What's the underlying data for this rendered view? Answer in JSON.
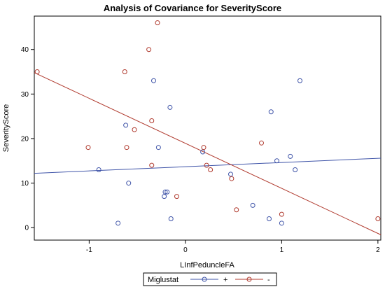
{
  "chart_data": {
    "type": "scatter",
    "title": "Analysis of Covariance for SeverityScore",
    "xlabel": "LInfPeduncleFA",
    "ylabel": "SeverityScore",
    "xlim": [
      -1.57,
      2.03
    ],
    "ylim": [
      -2.8,
      47.5
    ],
    "x_ticks": [
      -1,
      0,
      1,
      2
    ],
    "y_ticks": [
      0,
      10,
      20,
      30,
      40
    ],
    "x_tick_labels": [
      "-1",
      "0",
      "1",
      "2"
    ],
    "y_tick_labels": [
      "0",
      "10",
      "20",
      "30",
      "40"
    ],
    "grid": false,
    "legend": {
      "title": "Miglustat",
      "placement": "bottom",
      "entries": [
        "+",
        "-"
      ]
    },
    "colors": {
      "plus": "#3f54a8",
      "minus": "#b03a2e"
    },
    "series": [
      {
        "name": "+",
        "color": "#3f54a8",
        "points": [
          {
            "x": -0.9,
            "y": 13
          },
          {
            "x": -0.7,
            "y": 1
          },
          {
            "x": -0.62,
            "y": 23
          },
          {
            "x": -0.59,
            "y": 10
          },
          {
            "x": -0.33,
            "y": 33
          },
          {
            "x": -0.28,
            "y": 18
          },
          {
            "x": -0.22,
            "y": 7
          },
          {
            "x": -0.21,
            "y": 8
          },
          {
            "x": -0.19,
            "y": 8
          },
          {
            "x": -0.16,
            "y": 27
          },
          {
            "x": -0.15,
            "y": 2
          },
          {
            "x": 0.18,
            "y": 17
          },
          {
            "x": 0.47,
            "y": 12
          },
          {
            "x": 0.7,
            "y": 5
          },
          {
            "x": 0.87,
            "y": 2
          },
          {
            "x": 0.89,
            "y": 26
          },
          {
            "x": 0.95,
            "y": 15
          },
          {
            "x": 1.0,
            "y": 1
          },
          {
            "x": 1.09,
            "y": 16
          },
          {
            "x": 1.14,
            "y": 13
          },
          {
            "x": 1.19,
            "y": 33
          }
        ],
        "fit": [
          {
            "x": -1.57,
            "y": 12.2
          },
          {
            "x": 2.03,
            "y": 15.6
          }
        ]
      },
      {
        "name": "-",
        "color": "#b03a2e",
        "points": [
          {
            "x": -1.54,
            "y": 35
          },
          {
            "x": -1.01,
            "y": 18
          },
          {
            "x": -0.63,
            "y": 35
          },
          {
            "x": -0.61,
            "y": 18
          },
          {
            "x": -0.53,
            "y": 22
          },
          {
            "x": -0.38,
            "y": 40
          },
          {
            "x": -0.35,
            "y": 24
          },
          {
            "x": -0.35,
            "y": 14
          },
          {
            "x": -0.29,
            "y": 46
          },
          {
            "x": -0.09,
            "y": 7
          },
          {
            "x": 0.19,
            "y": 18
          },
          {
            "x": 0.22,
            "y": 14
          },
          {
            "x": 0.26,
            "y": 13
          },
          {
            "x": 0.48,
            "y": 11
          },
          {
            "x": 0.53,
            "y": 4
          },
          {
            "x": 0.79,
            "y": 19
          },
          {
            "x": 1.0,
            "y": 3
          },
          {
            "x": 2.0,
            "y": 2
          }
        ],
        "fit": [
          {
            "x": -1.57,
            "y": 34.8
          },
          {
            "x": 2.03,
            "y": -1.6
          }
        ]
      }
    ]
  }
}
